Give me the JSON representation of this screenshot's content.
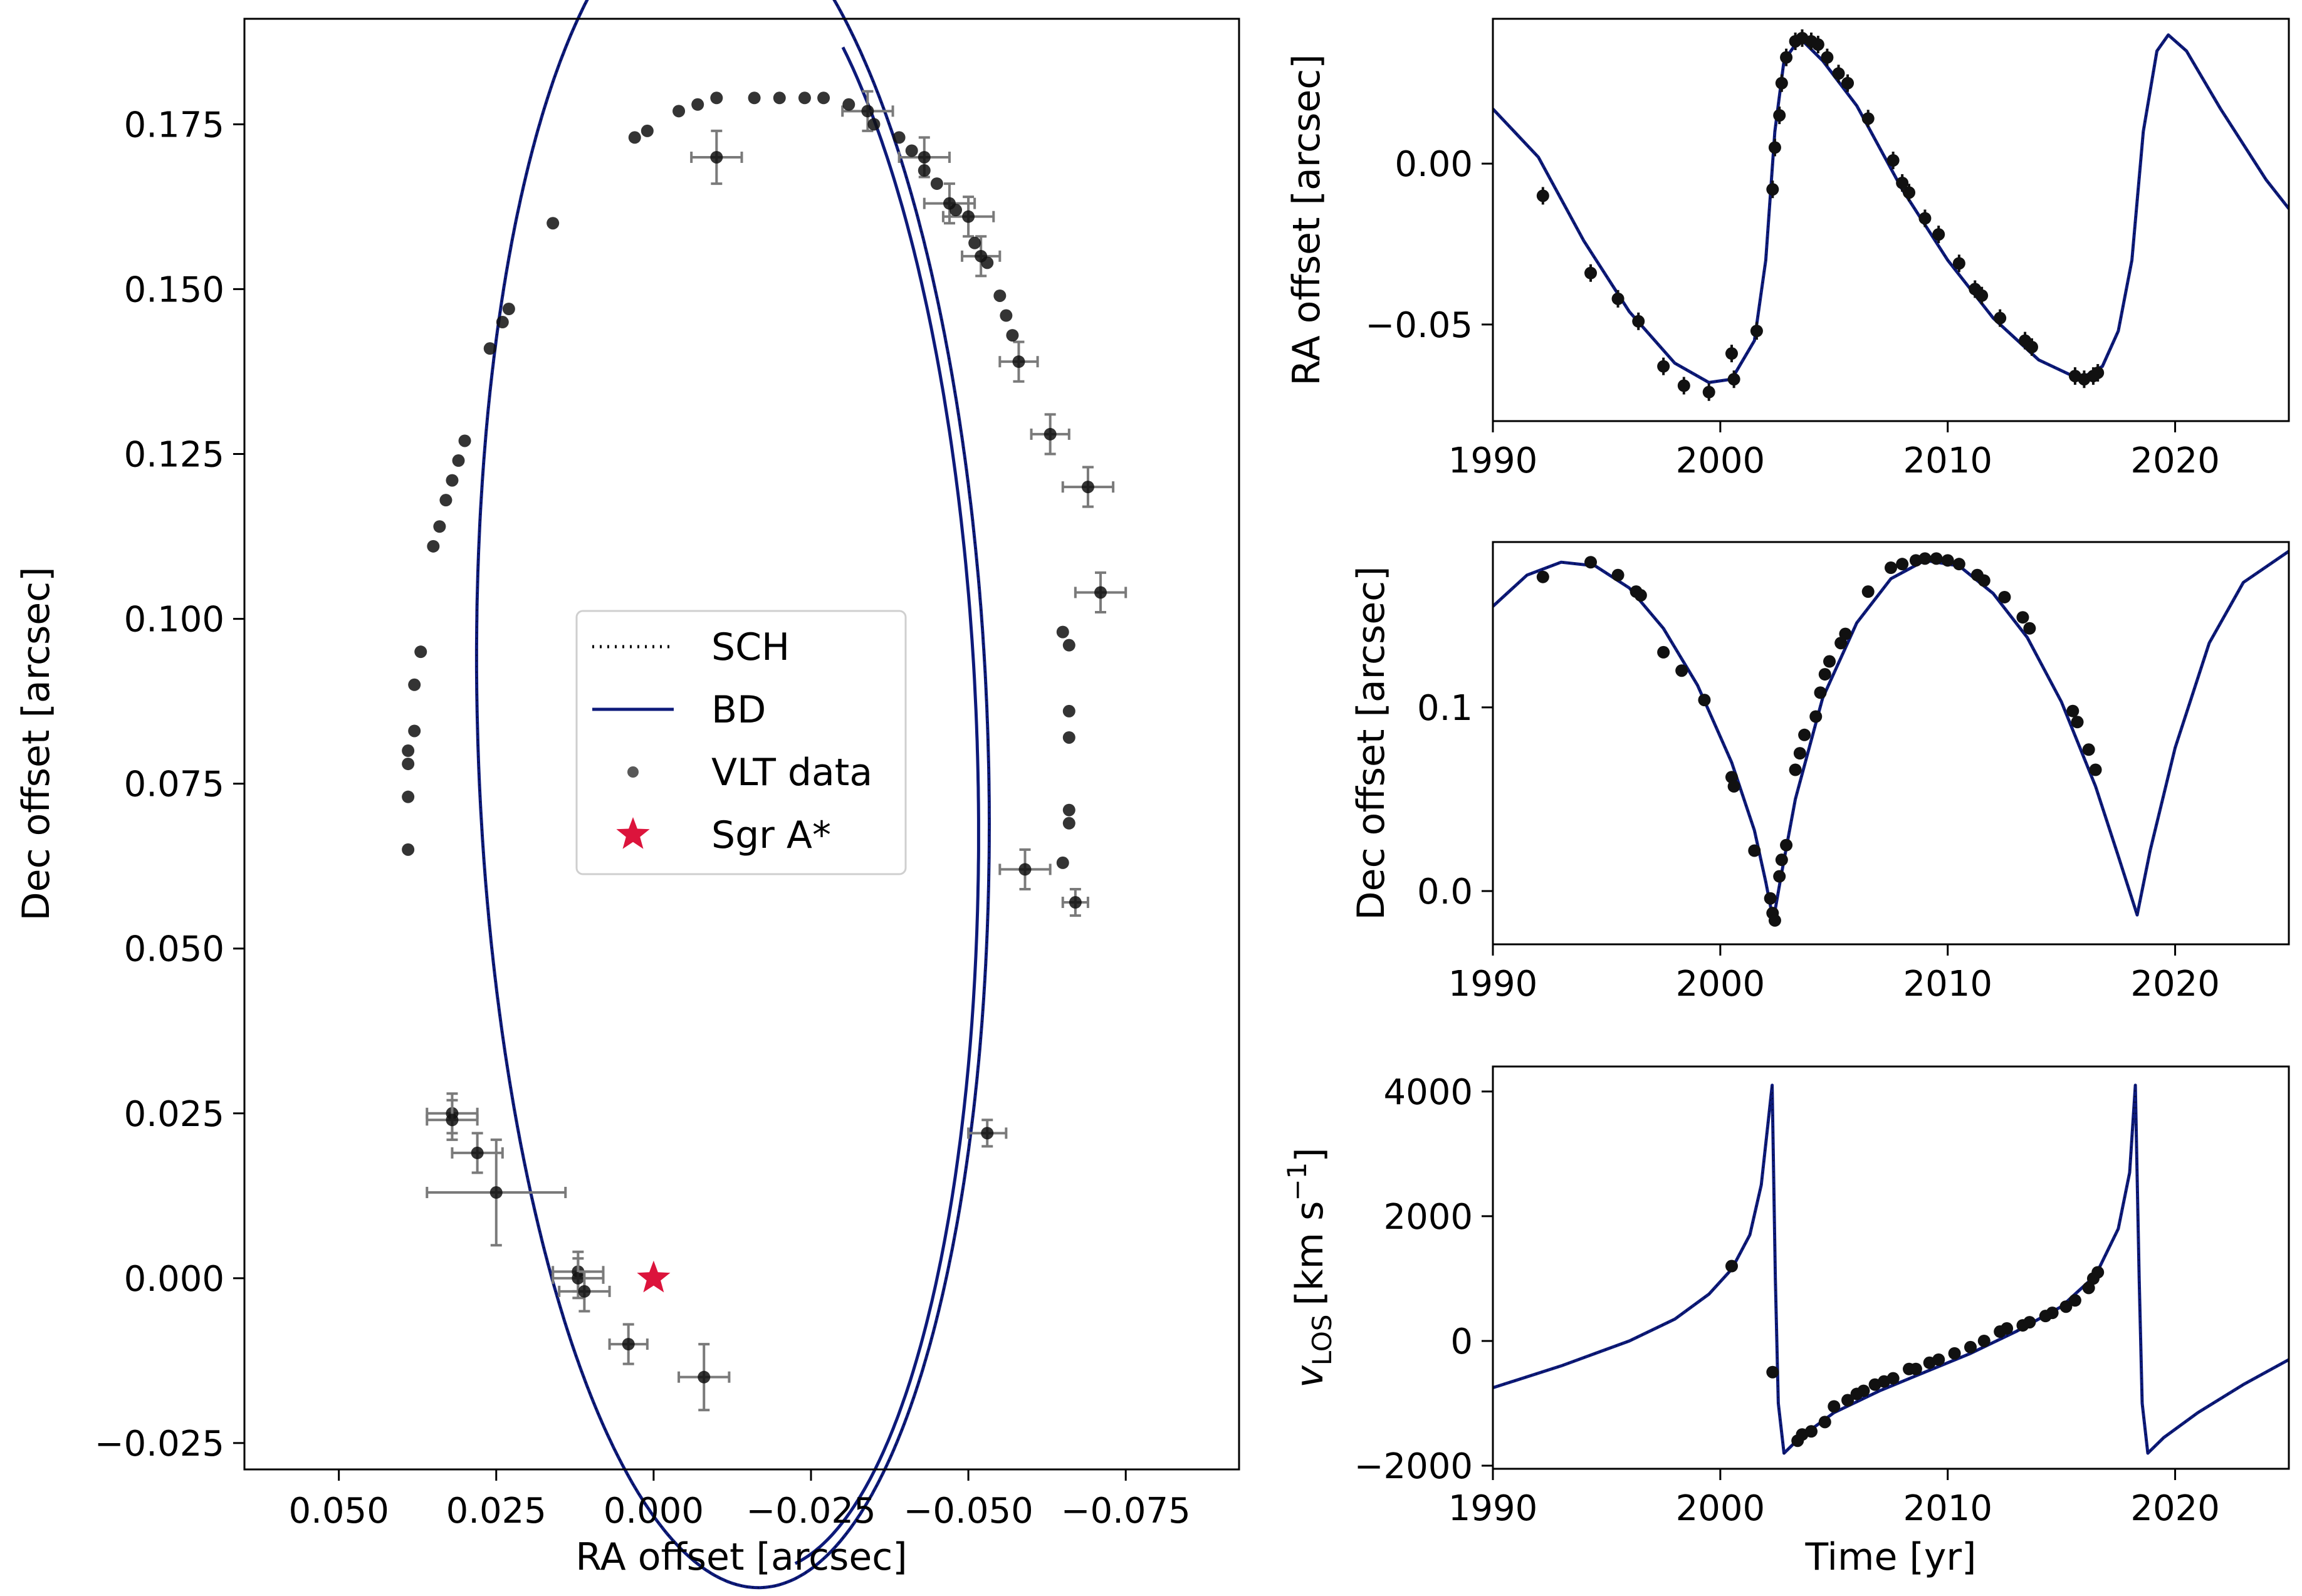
{
  "colors": {
    "model": "#0d1a7a",
    "data": "#111111",
    "errorbar": "#7a7a7a",
    "sgra": "#dc143c",
    "axis": "#000000"
  },
  "chart_data": [
    {
      "id": "orbit",
      "type": "scatter",
      "xlabel": "RA offset [arcsec]",
      "ylabel": "Dec offset [arcsec]",
      "xlim": [
        0.065,
        -0.093
      ],
      "ylim": [
        -0.029,
        0.191
      ],
      "xticks": [
        0.05,
        0.025,
        0.0,
        -0.025,
        -0.05,
        -0.075
      ],
      "xtick_labels": [
        "0.050",
        "0.025",
        "0.000",
        "−0.025",
        "−0.050",
        "−0.075"
      ],
      "yticks": [
        -0.025,
        0.0,
        0.025,
        0.05,
        0.075,
        0.1,
        0.125,
        0.15,
        0.175
      ],
      "ytick_labels": [
        "−0.025",
        "0.000",
        "0.025",
        "0.050",
        "0.075",
        "0.100",
        "0.125",
        "0.150",
        "0.175"
      ],
      "legend": {
        "placement": "center",
        "entries": [
          {
            "label": "SCH",
            "style": "dotted-line"
          },
          {
            "label": "BD",
            "style": "solid-line"
          },
          {
            "label": "VLT data",
            "style": "marker"
          },
          {
            "label": "Sgr A*",
            "style": "star"
          }
        ]
      },
      "ellipse_model": {
        "center_x": -0.0126,
        "center_y": 0.0815,
        "a": 0.1285,
        "b": 0.0405,
        "tilt_deg": 88.0,
        "gap_end_x": 0.014,
        "gap_end_y": 0.158
      },
      "sgra": {
        "x": 0.0,
        "y": 0.0
      },
      "points_with_errors": [
        {
          "x": 0.032,
          "y": 0.025,
          "xerr": 0.004,
          "yerr": 0.003
        },
        {
          "x": 0.032,
          "y": 0.024,
          "xerr": 0.004,
          "yerr": 0.003
        },
        {
          "x": 0.028,
          "y": 0.019,
          "xerr": 0.004,
          "yerr": 0.003
        },
        {
          "x": 0.025,
          "y": 0.013,
          "xerr": 0.011,
          "yerr": 0.008
        },
        {
          "x": 0.012,
          "y": 0.001,
          "xerr": 0.004,
          "yerr": 0.003
        },
        {
          "x": 0.012,
          "y": 0.0,
          "xerr": 0.004,
          "yerr": 0.003
        },
        {
          "x": 0.011,
          "y": -0.002,
          "xerr": 0.004,
          "yerr": 0.003
        },
        {
          "x": 0.004,
          "y": -0.01,
          "xerr": 0.003,
          "yerr": 0.003
        },
        {
          "x": -0.008,
          "y": -0.015,
          "xerr": 0.004,
          "yerr": 0.005
        },
        {
          "x": -0.01,
          "y": 0.17,
          "xerr": 0.004,
          "yerr": 0.004
        },
        {
          "x": -0.034,
          "y": 0.177,
          "xerr": 0.004,
          "yerr": 0.003
        },
        {
          "x": -0.043,
          "y": 0.17,
          "xerr": 0.004,
          "yerr": 0.003
        },
        {
          "x": -0.047,
          "y": 0.163,
          "xerr": 0.004,
          "yerr": 0.003
        },
        {
          "x": -0.05,
          "y": 0.161,
          "xerr": 0.004,
          "yerr": 0.003
        },
        {
          "x": -0.052,
          "y": 0.155,
          "xerr": 0.003,
          "yerr": 0.003
        },
        {
          "x": -0.058,
          "y": 0.139,
          "xerr": 0.003,
          "yerr": 0.003
        },
        {
          "x": -0.063,
          "y": 0.128,
          "xerr": 0.003,
          "yerr": 0.003
        },
        {
          "x": -0.069,
          "y": 0.12,
          "xerr": 0.004,
          "yerr": 0.003
        },
        {
          "x": -0.071,
          "y": 0.104,
          "xerr": 0.004,
          "yerr": 0.003
        },
        {
          "x": -0.059,
          "y": 0.062,
          "xerr": 0.004,
          "yerr": 0.003
        },
        {
          "x": -0.067,
          "y": 0.057,
          "xerr": 0.002,
          "yerr": 0.002
        },
        {
          "x": -0.053,
          "y": 0.022,
          "xerr": 0.003,
          "yerr": 0.002
        }
      ],
      "points": [
        {
          "x": 0.039,
          "y": 0.065
        },
        {
          "x": 0.039,
          "y": 0.073
        },
        {
          "x": 0.039,
          "y": 0.078
        },
        {
          "x": 0.039,
          "y": 0.08
        },
        {
          "x": 0.038,
          "y": 0.083
        },
        {
          "x": 0.038,
          "y": 0.09
        },
        {
          "x": 0.037,
          "y": 0.095
        },
        {
          "x": 0.035,
          "y": 0.111
        },
        {
          "x": 0.034,
          "y": 0.114
        },
        {
          "x": 0.033,
          "y": 0.118
        },
        {
          "x": 0.032,
          "y": 0.121
        },
        {
          "x": 0.031,
          "y": 0.124
        },
        {
          "x": 0.03,
          "y": 0.127
        },
        {
          "x": 0.026,
          "y": 0.141
        },
        {
          "x": 0.024,
          "y": 0.145
        },
        {
          "x": 0.023,
          "y": 0.147
        },
        {
          "x": 0.016,
          "y": 0.16
        },
        {
          "x": 0.003,
          "y": 0.173
        },
        {
          "x": 0.001,
          "y": 0.174
        },
        {
          "x": -0.004,
          "y": 0.177
        },
        {
          "x": -0.007,
          "y": 0.178
        },
        {
          "x": -0.01,
          "y": 0.179
        },
        {
          "x": -0.016,
          "y": 0.179
        },
        {
          "x": -0.02,
          "y": 0.179
        },
        {
          "x": -0.024,
          "y": 0.179
        },
        {
          "x": -0.027,
          "y": 0.179
        },
        {
          "x": -0.031,
          "y": 0.178
        },
        {
          "x": -0.035,
          "y": 0.175
        },
        {
          "x": -0.039,
          "y": 0.173
        },
        {
          "x": -0.041,
          "y": 0.171
        },
        {
          "x": -0.043,
          "y": 0.168
        },
        {
          "x": -0.045,
          "y": 0.166
        },
        {
          "x": -0.048,
          "y": 0.162
        },
        {
          "x": -0.051,
          "y": 0.157
        },
        {
          "x": -0.053,
          "y": 0.154
        },
        {
          "x": -0.055,
          "y": 0.149
        },
        {
          "x": -0.056,
          "y": 0.146
        },
        {
          "x": -0.057,
          "y": 0.143
        },
        {
          "x": -0.065,
          "y": 0.098
        },
        {
          "x": -0.066,
          "y": 0.096
        },
        {
          "x": -0.066,
          "y": 0.086
        },
        {
          "x": -0.066,
          "y": 0.082
        },
        {
          "x": -0.066,
          "y": 0.071
        },
        {
          "x": -0.066,
          "y": 0.069
        },
        {
          "x": -0.065,
          "y": 0.063
        }
      ]
    },
    {
      "id": "ra_time",
      "type": "line",
      "ylabel": "RA offset [arcsec]",
      "xlim": [
        1990,
        2025
      ],
      "ylim": [
        -0.08,
        0.045
      ],
      "xticks": [
        1990,
        2000,
        2010,
        2020
      ],
      "yticks": [
        0.0,
        -0.05
      ],
      "ytick_labels": [
        "0.00",
        "−0.05"
      ],
      "curve": [
        [
          1990,
          0.017
        ],
        [
          1992,
          0.002
        ],
        [
          1994,
          -0.024
        ],
        [
          1996,
          -0.046
        ],
        [
          1998,
          -0.062
        ],
        [
          1999.5,
          -0.068
        ],
        [
          2000.5,
          -0.067
        ],
        [
          2001.5,
          -0.055
        ],
        [
          2002.0,
          -0.03
        ],
        [
          2002.4,
          0.01
        ],
        [
          2002.8,
          0.032
        ],
        [
          2003.5,
          0.039
        ],
        [
          2004.5,
          0.032
        ],
        [
          2006,
          0.018
        ],
        [
          2008,
          -0.008
        ],
        [
          2010,
          -0.03
        ],
        [
          2012,
          -0.048
        ],
        [
          2014,
          -0.061
        ],
        [
          2015.8,
          -0.067
        ],
        [
          2016.8,
          -0.063
        ],
        [
          2017.5,
          -0.052
        ],
        [
          2018.1,
          -0.03
        ],
        [
          2018.6,
          0.01
        ],
        [
          2019.2,
          0.035
        ],
        [
          2019.7,
          0.04
        ],
        [
          2020.5,
          0.035
        ],
        [
          2022,
          0.017
        ],
        [
          2024,
          -0.005
        ],
        [
          2025,
          -0.014
        ]
      ],
      "points": [
        [
          1992.2,
          -0.01
        ],
        [
          1994.3,
          -0.034
        ],
        [
          1995.5,
          -0.042
        ],
        [
          1996.4,
          -0.049
        ],
        [
          1997.5,
          -0.063
        ],
        [
          1998.4,
          -0.069
        ],
        [
          1999.5,
          -0.071
        ],
        [
          2000.5,
          -0.059
        ],
        [
          2000.6,
          -0.067
        ],
        [
          2001.6,
          -0.052
        ],
        [
          2002.3,
          -0.008
        ],
        [
          2002.4,
          0.005
        ],
        [
          2002.6,
          0.015
        ],
        [
          2002.7,
          0.025
        ],
        [
          2002.9,
          0.033
        ],
        [
          2003.3,
          0.038
        ],
        [
          2003.6,
          0.039
        ],
        [
          2004.0,
          0.038
        ],
        [
          2004.3,
          0.037
        ],
        [
          2004.7,
          0.033
        ],
        [
          2005.2,
          0.028
        ],
        [
          2005.6,
          0.025
        ],
        [
          2006.5,
          0.014
        ],
        [
          2007.6,
          0.001
        ],
        [
          2008.0,
          -0.006
        ],
        [
          2008.3,
          -0.009
        ],
        [
          2009.0,
          -0.017
        ],
        [
          2009.6,
          -0.022
        ],
        [
          2010.5,
          -0.031
        ],
        [
          2011.2,
          -0.039
        ],
        [
          2011.5,
          -0.041
        ],
        [
          2012.3,
          -0.048
        ],
        [
          2013.4,
          -0.055
        ],
        [
          2013.7,
          -0.057
        ],
        [
          2015.6,
          -0.066
        ],
        [
          2016.0,
          -0.067
        ],
        [
          2016.4,
          -0.066
        ],
        [
          2016.6,
          -0.065
        ]
      ]
    },
    {
      "id": "dec_time",
      "type": "line",
      "ylabel": "Dec offset [arcsec]",
      "xlim": [
        1990,
        2025
      ],
      "ylim": [
        -0.029,
        0.19
      ],
      "xticks": [
        1990,
        2000,
        2010,
        2020
      ],
      "yticks": [
        0.1,
        0.0
      ],
      "ytick_labels": [
        "0.1",
        "0.0"
      ],
      "curve": [
        [
          1990,
          0.155
        ],
        [
          1991.5,
          0.172
        ],
        [
          1993,
          0.179
        ],
        [
          1994.5,
          0.177
        ],
        [
          1996,
          0.165
        ],
        [
          1997.5,
          0.143
        ],
        [
          1999,
          0.112
        ],
        [
          2000.5,
          0.07
        ],
        [
          2001.5,
          0.033
        ],
        [
          2002.0,
          0.005
        ],
        [
          2002.33,
          -0.016
        ],
        [
          2002.7,
          0.01
        ],
        [
          2003.3,
          0.05
        ],
        [
          2004.5,
          0.105
        ],
        [
          2006,
          0.146
        ],
        [
          2007.5,
          0.17
        ],
        [
          2009,
          0.18
        ],
        [
          2010.5,
          0.177
        ],
        [
          2012,
          0.162
        ],
        [
          2013.5,
          0.138
        ],
        [
          2015,
          0.103
        ],
        [
          2016.5,
          0.057
        ],
        [
          2017.5,
          0.019
        ],
        [
          2018.33,
          -0.013
        ],
        [
          2018.9,
          0.022
        ],
        [
          2020,
          0.078
        ],
        [
          2021.5,
          0.135
        ],
        [
          2023,
          0.168
        ],
        [
          2025,
          0.185
        ]
      ],
      "points": [
        [
          1992.2,
          0.171
        ],
        [
          1994.3,
          0.179
        ],
        [
          1995.5,
          0.172
        ],
        [
          1996.3,
          0.163
        ],
        [
          1996.5,
          0.161
        ],
        [
          1997.5,
          0.13
        ],
        [
          1998.3,
          0.12
        ],
        [
          1999.3,
          0.104
        ],
        [
          2000.5,
          0.062
        ],
        [
          2000.6,
          0.057
        ],
        [
          2001.5,
          0.022
        ],
        [
          2002.2,
          -0.004
        ],
        [
          2002.3,
          -0.012
        ],
        [
          2002.4,
          -0.016
        ],
        [
          2002.6,
          0.008
        ],
        [
          2002.7,
          0.017
        ],
        [
          2002.9,
          0.025
        ],
        [
          2003.3,
          0.066
        ],
        [
          2003.5,
          0.075
        ],
        [
          2003.7,
          0.085
        ],
        [
          2004.2,
          0.095
        ],
        [
          2004.4,
          0.108
        ],
        [
          2004.6,
          0.118
        ],
        [
          2004.8,
          0.125
        ],
        [
          2005.3,
          0.135
        ],
        [
          2005.5,
          0.14
        ],
        [
          2006.5,
          0.163
        ],
        [
          2007.5,
          0.176
        ],
        [
          2008.0,
          0.178
        ],
        [
          2008.6,
          0.18
        ],
        [
          2009.0,
          0.181
        ],
        [
          2009.5,
          0.181
        ],
        [
          2010.0,
          0.18
        ],
        [
          2010.5,
          0.178
        ],
        [
          2011.3,
          0.172
        ],
        [
          2011.6,
          0.169
        ],
        [
          2012.5,
          0.16
        ],
        [
          2013.3,
          0.149
        ],
        [
          2013.6,
          0.143
        ],
        [
          2015.5,
          0.098
        ],
        [
          2015.7,
          0.092
        ],
        [
          2016.2,
          0.077
        ],
        [
          2016.5,
          0.066
        ]
      ]
    },
    {
      "id": "vlos_time",
      "type": "line",
      "xlabel": "Time [yr]",
      "ylabel": "v_LOS [km s^-1]",
      "ylabel_parts": {
        "v": "v",
        "sub": "LOS",
        "unit": "[km s",
        "exp": "−1",
        "close": "]"
      },
      "xlim": [
        1990,
        2025
      ],
      "ylim": [
        -2050,
        4400
      ],
      "xticks": [
        1990,
        2000,
        2010,
        2020
      ],
      "yticks": [
        4000,
        2000,
        0,
        -2000
      ],
      "ytick_labels": [
        "4000",
        "2000",
        "0",
        "−2000"
      ],
      "curve": [
        [
          1990,
          -750
        ],
        [
          1993,
          -400
        ],
        [
          1996,
          0
        ],
        [
          1998,
          350
        ],
        [
          1999.5,
          750
        ],
        [
          2000.5,
          1150
        ],
        [
          2001.3,
          1700
        ],
        [
          2001.8,
          2500
        ],
        [
          2002.1,
          3500
        ],
        [
          2002.28,
          4100
        ],
        [
          2002.42,
          1000
        ],
        [
          2002.55,
          -1000
        ],
        [
          2002.8,
          -1800
        ],
        [
          2003.5,
          -1550
        ],
        [
          2005,
          -1150
        ],
        [
          2007,
          -800
        ],
        [
          2009,
          -500
        ],
        [
          2011,
          -200
        ],
        [
          2013,
          150
        ],
        [
          2015,
          550
        ],
        [
          2016.5,
          1050
        ],
        [
          2017.5,
          1800
        ],
        [
          2018.0,
          2700
        ],
        [
          2018.25,
          4100
        ],
        [
          2018.42,
          1000
        ],
        [
          2018.55,
          -1000
        ],
        [
          2018.8,
          -1800
        ],
        [
          2019.5,
          -1550
        ],
        [
          2021,
          -1150
        ],
        [
          2023,
          -700
        ],
        [
          2025,
          -300
        ]
      ],
      "points": [
        [
          2000.5,
          1200
        ],
        [
          2002.3,
          -500
        ],
        [
          2003.4,
          -1600
        ],
        [
          2003.6,
          -1500
        ],
        [
          2004.0,
          -1450
        ],
        [
          2004.6,
          -1300
        ],
        [
          2005.0,
          -1050
        ],
        [
          2005.6,
          -950
        ],
        [
          2006.0,
          -850
        ],
        [
          2006.3,
          -800
        ],
        [
          2006.8,
          -700
        ],
        [
          2007.2,
          -650
        ],
        [
          2007.6,
          -600
        ],
        [
          2008.3,
          -450
        ],
        [
          2008.6,
          -450
        ],
        [
          2009.2,
          -350
        ],
        [
          2009.6,
          -300
        ],
        [
          2010.3,
          -200
        ],
        [
          2011.0,
          -100
        ],
        [
          2011.6,
          0
        ],
        [
          2012.3,
          150
        ],
        [
          2012.6,
          200
        ],
        [
          2013.3,
          250
        ],
        [
          2013.6,
          300
        ],
        [
          2014.3,
          400
        ],
        [
          2014.6,
          450
        ],
        [
          2015.2,
          550
        ],
        [
          2015.6,
          650
        ],
        [
          2016.2,
          850
        ],
        [
          2016.4,
          1000
        ],
        [
          2016.6,
          1100
        ]
      ]
    }
  ]
}
